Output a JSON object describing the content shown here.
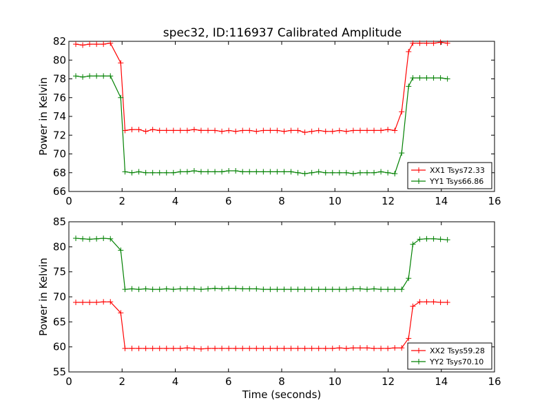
{
  "figure": {
    "title": "spec32, ID:116937 Calibrated Amplitude"
  },
  "chart_data": [
    {
      "type": "line",
      "title": "spec32, ID:116937 Calibrated Amplitude",
      "xlabel": "",
      "ylabel": "Power in Kelvin",
      "xlim": [
        0,
        16
      ],
      "ylim": [
        66,
        82
      ],
      "xticks": [
        0,
        2,
        4,
        6,
        8,
        10,
        12,
        14,
        16
      ],
      "yticks": [
        66,
        68,
        70,
        72,
        74,
        76,
        78,
        80,
        82
      ],
      "legend_position": "lower-right",
      "grid": false,
      "x": [
        0.26,
        0.52,
        0.78,
        1.04,
        1.3,
        1.56,
        1.95,
        2.11,
        2.37,
        2.63,
        2.89,
        3.15,
        3.41,
        3.67,
        3.93,
        4.19,
        4.45,
        4.71,
        4.97,
        5.23,
        5.49,
        5.75,
        6.01,
        6.27,
        6.53,
        6.79,
        7.05,
        7.31,
        7.57,
        7.83,
        8.09,
        8.35,
        8.61,
        8.87,
        9.13,
        9.39,
        9.65,
        9.91,
        10.17,
        10.43,
        10.69,
        10.95,
        11.21,
        11.47,
        11.73,
        11.99,
        12.25,
        12.51,
        12.77,
        12.93,
        13.19,
        13.45,
        13.71,
        13.97,
        14.23
      ],
      "series": [
        {
          "name": "XX1 Tsys72.33",
          "color": "#ff0000",
          "values": [
            81.7,
            81.6,
            81.7,
            81.7,
            81.7,
            81.8,
            79.7,
            72.5,
            72.6,
            72.6,
            72.4,
            72.6,
            72.5,
            72.5,
            72.5,
            72.5,
            72.5,
            72.6,
            72.5,
            72.5,
            72.5,
            72.4,
            72.5,
            72.4,
            72.5,
            72.5,
            72.4,
            72.5,
            72.5,
            72.5,
            72.4,
            72.5,
            72.5,
            72.3,
            72.4,
            72.5,
            72.4,
            72.4,
            72.5,
            72.4,
            72.5,
            72.5,
            72.5,
            72.5,
            72.5,
            72.6,
            72.5,
            74.5,
            80.9,
            81.8,
            81.8,
            81.8,
            81.8,
            81.9,
            81.8
          ]
        },
        {
          "name": "YY1 Tsys66.86",
          "color": "#008000",
          "values": [
            78.3,
            78.2,
            78.3,
            78.3,
            78.3,
            78.3,
            76.0,
            68.1,
            68.0,
            68.1,
            68.0,
            68.0,
            68.0,
            68.0,
            68.0,
            68.1,
            68.1,
            68.2,
            68.1,
            68.1,
            68.1,
            68.1,
            68.2,
            68.2,
            68.1,
            68.1,
            68.1,
            68.1,
            68.1,
            68.1,
            68.1,
            68.1,
            68.0,
            67.9,
            68.0,
            68.1,
            68.0,
            68.0,
            68.0,
            68.0,
            67.9,
            68.0,
            68.0,
            68.0,
            68.1,
            68.0,
            67.9,
            70.1,
            77.2,
            78.1,
            78.1,
            78.1,
            78.1,
            78.1,
            78.0
          ]
        }
      ]
    },
    {
      "type": "line",
      "title": "",
      "xlabel": "Time (seconds)",
      "ylabel": "Power in Kelvin",
      "xlim": [
        0,
        16
      ],
      "ylim": [
        55,
        85
      ],
      "xticks": [
        0,
        2,
        4,
        6,
        8,
        10,
        12,
        14,
        16
      ],
      "yticks": [
        55,
        60,
        65,
        70,
        75,
        80,
        85
      ],
      "legend_position": "lower-right",
      "grid": false,
      "x": [
        0.26,
        0.52,
        0.78,
        1.04,
        1.3,
        1.56,
        1.95,
        2.11,
        2.37,
        2.63,
        2.89,
        3.15,
        3.41,
        3.67,
        3.93,
        4.19,
        4.45,
        4.71,
        4.97,
        5.23,
        5.49,
        5.75,
        6.01,
        6.27,
        6.53,
        6.79,
        7.05,
        7.31,
        7.57,
        7.83,
        8.09,
        8.35,
        8.61,
        8.87,
        9.13,
        9.39,
        9.65,
        9.91,
        10.17,
        10.43,
        10.69,
        10.95,
        11.21,
        11.47,
        11.73,
        11.99,
        12.25,
        12.51,
        12.77,
        12.93,
        13.19,
        13.45,
        13.71,
        13.97,
        14.23
      ],
      "series": [
        {
          "name": "XX2 Tsys59.28",
          "color": "#ff0000",
          "values": [
            68.9,
            68.9,
            68.9,
            68.9,
            69.0,
            69.0,
            66.8,
            59.7,
            59.7,
            59.7,
            59.7,
            59.7,
            59.7,
            59.7,
            59.7,
            59.7,
            59.8,
            59.7,
            59.6,
            59.7,
            59.7,
            59.7,
            59.7,
            59.7,
            59.7,
            59.7,
            59.7,
            59.7,
            59.7,
            59.7,
            59.7,
            59.7,
            59.7,
            59.7,
            59.7,
            59.7,
            59.7,
            59.7,
            59.8,
            59.7,
            59.8,
            59.8,
            59.8,
            59.7,
            59.7,
            59.7,
            59.8,
            59.8,
            61.7,
            68.1,
            69.0,
            69.0,
            69.0,
            68.9,
            68.9
          ]
        },
        {
          "name": "YY2 Tsys70.10",
          "color": "#008000",
          "values": [
            81.7,
            81.6,
            81.5,
            81.6,
            81.7,
            81.6,
            79.3,
            71.5,
            71.6,
            71.5,
            71.6,
            71.5,
            71.5,
            71.6,
            71.5,
            71.6,
            71.6,
            71.6,
            71.5,
            71.6,
            71.7,
            71.6,
            71.7,
            71.7,
            71.6,
            71.6,
            71.6,
            71.5,
            71.5,
            71.5,
            71.5,
            71.5,
            71.5,
            71.5,
            71.5,
            71.5,
            71.5,
            71.5,
            71.5,
            71.5,
            71.6,
            71.6,
            71.5,
            71.6,
            71.5,
            71.5,
            71.5,
            71.5,
            73.7,
            80.5,
            81.5,
            81.6,
            81.6,
            81.5,
            81.4
          ]
        }
      ]
    }
  ]
}
